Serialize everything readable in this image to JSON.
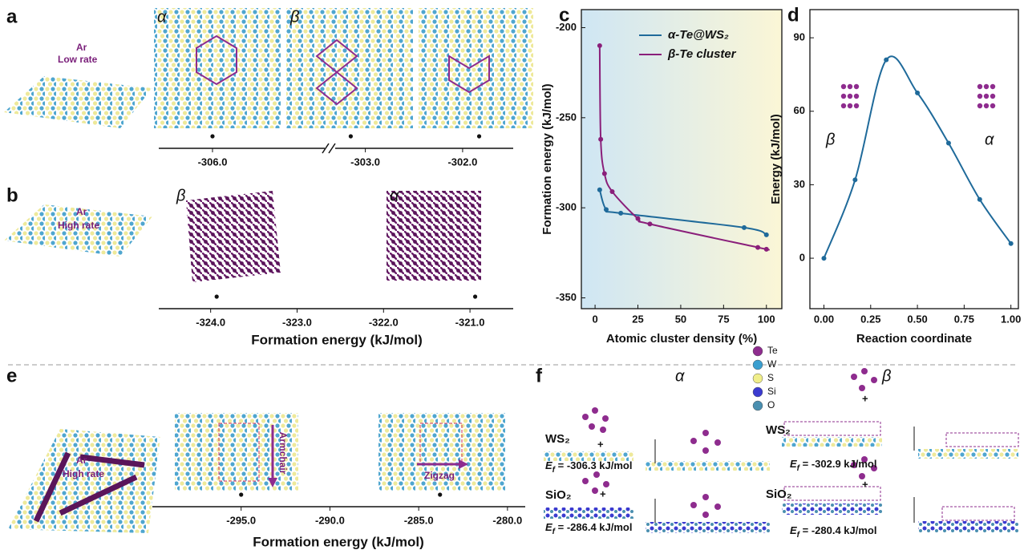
{
  "panel_a": {
    "letter": "a",
    "annotations": [
      "Ar",
      "Low rate"
    ],
    "phases": [
      "α",
      "β"
    ],
    "axis": {
      "segments": [
        {
          "xlim": [
            -306.67,
            -304.6
          ],
          "xticks": [
            {
              "value": -306,
              "label": "-306.0"
            }
          ]
        },
        {
          "xlim": [
            -303.31,
            -301.48
          ],
          "xticks": [
            {
              "value": -303,
              "label": "-303.0"
            },
            {
              "value": -302,
              "label": "-302.0"
            }
          ]
        }
      ],
      "points": [
        -306.0,
        -303.15,
        -301.83
      ]
    }
  },
  "panel_b": {
    "letter": "b",
    "annotations": [
      "Ar",
      "High rate"
    ],
    "phases": [
      "β",
      "α"
    ],
    "axis": {
      "xlim": [
        -324.6,
        -320.5
      ],
      "xticks": [
        {
          "value": -324,
          "label": "-324.0"
        },
        {
          "value": -323,
          "label": "-323.0"
        },
        {
          "value": -322,
          "label": "-322.0"
        },
        {
          "value": -321,
          "label": "-321.0"
        }
      ],
      "points": [
        -323.93,
        -320.94
      ]
    },
    "xlabel": "Formation energy (kJ/mol)"
  },
  "chart_data": [
    {
      "panel": "c",
      "type": "line",
      "xlabel": "Atomic cluster density (%)",
      "ylabel": "Formation energy (kJ/mol)",
      "xlim": [
        -8,
        109
      ],
      "ylim": [
        -356,
        -190
      ],
      "xticks": [
        0,
        25,
        50,
        75,
        100
      ],
      "yticks": [
        -200,
        -250,
        -300,
        -350
      ],
      "series": [
        {
          "name": "α-Te@WS₂",
          "color": "#1f6a9a",
          "x": [
            2.7,
            6.5,
            15,
            87,
            100
          ],
          "values": [
            -290,
            -301,
            -303,
            -311,
            -315
          ]
        },
        {
          "name": "β-Te cluster",
          "color": "#8a1f7a",
          "x": [
            2.7,
            3.3,
            5.5,
            10,
            25,
            32,
            95,
            100
          ],
          "values": [
            -210,
            -262,
            -281,
            -291,
            -306,
            -309,
            -322,
            -323
          ]
        }
      ]
    },
    {
      "panel": "d",
      "type": "line",
      "xlabel": "Reaction coordinate",
      "ylabel": "Energy (kJ/mol)",
      "xlim": [
        -0.075,
        1.04
      ],
      "ylim": [
        -20.6,
        101.5
      ],
      "xticks": [
        {
          "value": 0,
          "label": "0.00"
        },
        {
          "value": 0.25,
          "label": "0.25"
        },
        {
          "value": 0.5,
          "label": "0.50"
        },
        {
          "value": 0.75,
          "label": "0.75"
        },
        {
          "value": 1,
          "label": "1.00"
        }
      ],
      "yticks": [
        0,
        30,
        60,
        90
      ],
      "annotations": [
        "β",
        "α"
      ],
      "series": [
        {
          "color": "#1f6a9a",
          "x": [
            0,
            0.1667,
            0.3333,
            0.5,
            0.6667,
            0.8333,
            1
          ],
          "values": [
            0,
            32,
            81,
            67.5,
            47,
            24,
            6
          ]
        }
      ]
    }
  ],
  "panel_e": {
    "letter": "e",
    "annotations": [
      "Ar",
      "High rate"
    ],
    "directions": [
      "Armchair",
      "Zigzag"
    ],
    "axis": {
      "xlim": [
        -300,
        -279
      ],
      "xticks": [
        {
          "value": -295,
          "label": "-295.0"
        },
        {
          "value": -290,
          "label": "-290.0"
        },
        {
          "value": -285,
          "label": "-285.0"
        },
        {
          "value": -280,
          "label": "-280.0"
        }
      ],
      "points": [
        -295.0,
        -283.8
      ]
    },
    "xlabel": "Formation energy (kJ/mol)"
  },
  "panel_f": {
    "letter": "f",
    "phases": [
      "α",
      "β"
    ],
    "legend": [
      "Te",
      "W",
      "S",
      "Si",
      "O"
    ],
    "legend_colors": [
      "#8e2c8e",
      "#3b9fd0",
      "#f0ee8a",
      "#3b3bd0",
      "#4a8fb0"
    ],
    "plus": "+",
    "substrates": [
      "WS₂",
      "SiO₂"
    ],
    "energies": [
      [
        {
          "symbol": "E",
          "subscript": "f",
          "text": " = -306.3 kJ/mol"
        },
        {
          "symbol": "E",
          "subscript": "f",
          "text": " = -286.4 kJ/mol"
        }
      ],
      [
        {
          "symbol": "E",
          "subscript": "f",
          "text": " = -302.9 kJ/mol"
        },
        {
          "symbol": "E",
          "subscript": "f",
          "text": " = -280.4 kJ/mol"
        }
      ]
    ]
  }
}
